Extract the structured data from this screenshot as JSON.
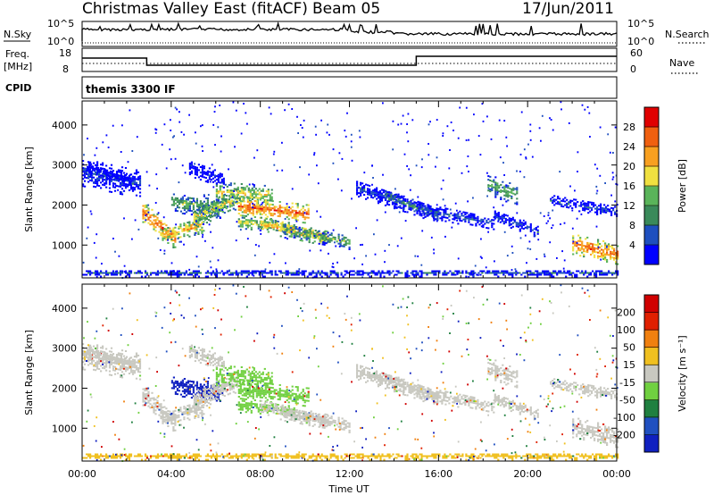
{
  "header": {
    "title": "Christmas Valley East (fitACF)",
    "beam": "Beam 05",
    "date": "17/Jun/2011"
  },
  "top_panels": {
    "nsky_label": "N.Sky",
    "nsky_ticks": [
      "10^5",
      "10^0"
    ],
    "nsearch_label": "N.Search",
    "nsearch_ticks": [
      "10^5",
      "10^0"
    ],
    "freq_label": "Freq.",
    "freq_unit": "[MHz]",
    "freq_ticks": [
      "18",
      "8"
    ],
    "nave_label": "Nave",
    "nave_ticks": [
      "60",
      "0"
    ],
    "cpid_label": "CPID",
    "cpid_value": "themis 3300 IF"
  },
  "colors": {
    "power_scale": [
      "#0000ff",
      "#1e4fbf",
      "#3a8a5a",
      "#5ab45a",
      "#f0e040",
      "#f8a020",
      "#f06010",
      "#e00000"
    ],
    "velocity_scale": [
      "#1020c0",
      "#2050c0",
      "#208040",
      "#70d040",
      "#c8c8c0",
      "#f0c020",
      "#f08010",
      "#e02000",
      "#d00000"
    ]
  },
  "chart_data": [
    {
      "type": "heatmap",
      "name": "power",
      "ylabel": "Slant Range [km]",
      "xlabel": "Time UT",
      "x_ticks": [
        "00:00",
        "04:00",
        "08:00",
        "12:00",
        "16:00",
        "20:00",
        "00:00"
      ],
      "y_ticks": [
        "1000",
        "2000",
        "3000",
        "4000"
      ],
      "ylim": [
        180,
        4600
      ],
      "xlim_hours": [
        0,
        24
      ],
      "colorbar": {
        "label": "Power [dB]",
        "ticks": [
          "28",
          "24",
          "20",
          "16",
          "12",
          "8",
          "4"
        ],
        "range": [
          0,
          30
        ]
      }
    },
    {
      "type": "heatmap",
      "name": "velocity",
      "ylabel": "Slant Range [km]",
      "xlabel": "Time UT",
      "x_ticks": [
        "00:00",
        "04:00",
        "08:00",
        "12:00",
        "16:00",
        "20:00",
        "00:00"
      ],
      "y_ticks": [
        "1000",
        "2000",
        "3000",
        "4000"
      ],
      "ylim": [
        180,
        4600
      ],
      "xlim_hours": [
        0,
        24
      ],
      "colorbar": {
        "label": "Velocity [m s⁻¹]",
        "ticks": [
          "200",
          "100",
          "50",
          "15",
          "-15",
          "-50",
          "-100",
          "-200"
        ]
      }
    }
  ],
  "footer": {
    "xlabel": "Time UT"
  }
}
